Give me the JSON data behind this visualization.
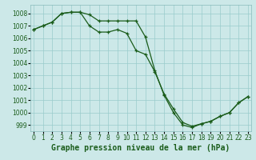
{
  "title": "Graphe pression niveau de la mer (hPa)",
  "background_color": "#cce8e8",
  "grid_color": "#99cccc",
  "line_color": "#1a5c1a",
  "x_labels": [
    "0",
    "1",
    "2",
    "3",
    "4",
    "5",
    "6",
    "7",
    "8",
    "9",
    "10",
    "11",
    "12",
    "13",
    "14",
    "15",
    "16",
    "17",
    "18",
    "19",
    "20",
    "21",
    "22",
    "23"
  ],
  "ylim": [
    998.5,
    1008.7
  ],
  "xlim": [
    -0.3,
    23.3
  ],
  "yticks": [
    999,
    1000,
    1001,
    1002,
    1003,
    1004,
    1005,
    1006,
    1007,
    1008
  ],
  "series1": [
    1006.7,
    1007.0,
    1007.3,
    1008.0,
    1008.1,
    1008.1,
    1007.9,
    1007.4,
    1007.4,
    1007.4,
    1007.4,
    1007.4,
    1006.1,
    1003.4,
    1001.4,
    1000.0,
    999.0,
    998.8,
    999.1,
    999.3,
    999.7,
    1000.0,
    1000.8,
    1001.3
  ],
  "series2": [
    1006.7,
    1007.0,
    1007.3,
    1008.0,
    1008.1,
    1008.1,
    1007.0,
    1006.5,
    1006.5,
    1006.7,
    1006.4,
    1005.0,
    1004.7,
    1003.3,
    1001.5,
    1000.3,
    999.2,
    998.9,
    999.1,
    999.3,
    999.7,
    1000.0,
    1000.8,
    1001.3
  ],
  "title_fontsize": 7,
  "tick_fontsize": 5.5
}
